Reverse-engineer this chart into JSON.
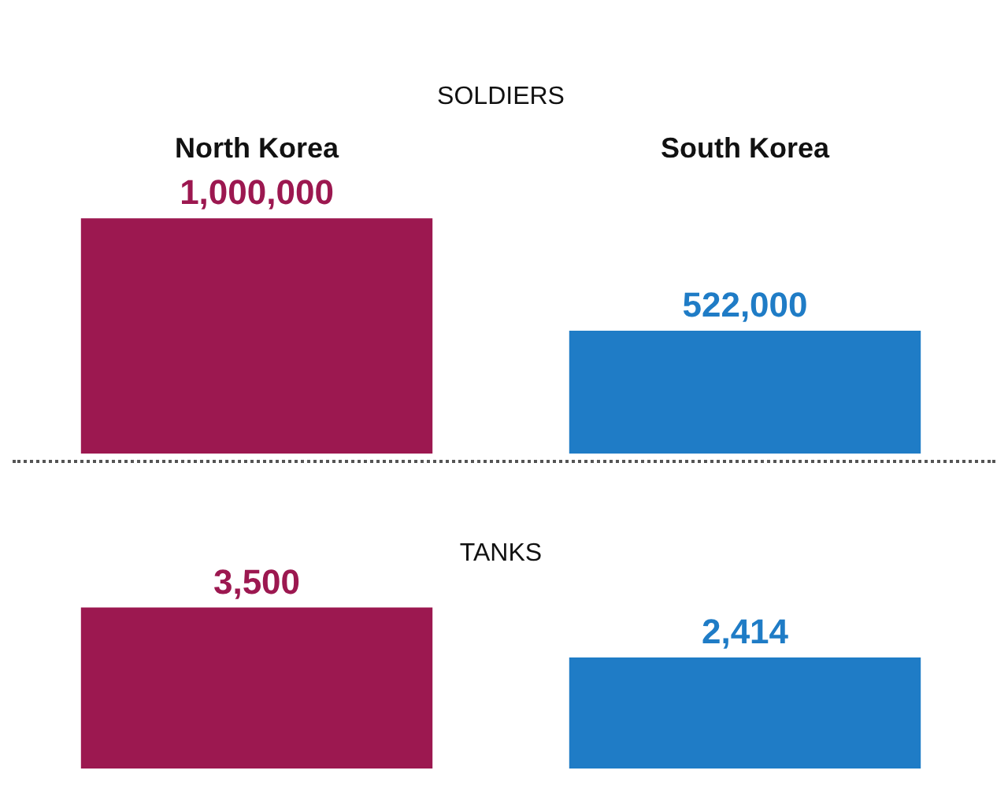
{
  "chart_data": [
    {
      "type": "bar",
      "title": "SOLDIERS",
      "categories": [
        "North Korea",
        "South Korea"
      ],
      "values": [
        1000000,
        522000
      ],
      "colors": [
        "#9c1850",
        "#1f7cc6"
      ],
      "value_labels": [
        "1,000,000",
        "522,000"
      ],
      "grid": false,
      "legend": false
    },
    {
      "type": "bar",
      "title": "TANKS",
      "categories": [
        null,
        null
      ],
      "values": [
        3500,
        2414
      ],
      "colors": [
        "#9c1850",
        "#1f7cc6"
      ],
      "value_labels": [
        "3,500",
        "2,414"
      ],
      "grid": false,
      "legend": false
    }
  ]
}
